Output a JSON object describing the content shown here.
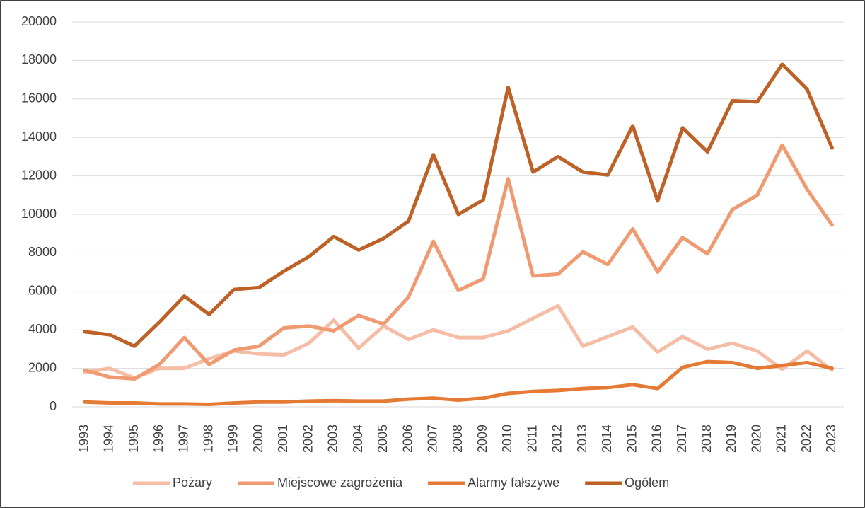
{
  "chart_data": {
    "type": "line",
    "categories": [
      "1993",
      "1994",
      "1995",
      "1996",
      "1997",
      "1998",
      "1999",
      "2000",
      "2001",
      "2002",
      "2003",
      "2004",
      "2005",
      "2006",
      "2007",
      "2008",
      "2009",
      "2010",
      "2011",
      "2012",
      "2013",
      "2014",
      "2015",
      "2016",
      "2017",
      "2018",
      "2019",
      "2020",
      "2021",
      "2022",
      "2023"
    ],
    "series": [
      {
        "name": "Pożary",
        "color": "#f6bda6",
        "values": [
          1800,
          2000,
          1500,
          2000,
          2000,
          2500,
          2900,
          2750,
          2700,
          3300,
          4500,
          3050,
          4200,
          3500,
          4000,
          3600,
          3600,
          3950,
          4600,
          5250,
          3150,
          3650,
          4150,
          2850,
          3650,
          3000,
          3300,
          2900,
          1950,
          2900,
          1900
        ]
      },
      {
        "name": "Miejscowe zagrożenia",
        "color": "#f09a71",
        "values": [
          1900,
          1550,
          1450,
          2200,
          3600,
          2200,
          2950,
          3150,
          4100,
          4200,
          3950,
          4750,
          4300,
          5700,
          8600,
          6050,
          6650,
          11850,
          6800,
          6900,
          8050,
          7400,
          9250,
          7000,
          8800,
          7950,
          10250,
          11000,
          13600,
          11300,
          9450
        ]
      },
      {
        "name": "Alarmy fałszywe",
        "color": "#e47a34",
        "values": [
          250,
          200,
          200,
          150,
          150,
          130,
          200,
          250,
          250,
          300,
          320,
          300,
          300,
          400,
          450,
          350,
          450,
          700,
          800,
          850,
          950,
          1000,
          1150,
          950,
          2050,
          2350,
          2300,
          2000,
          2150,
          2300,
          2000
        ]
      },
      {
        "name": "Ogółem",
        "color": "#be6126",
        "values": [
          3900,
          3750,
          3150,
          4400,
          5750,
          4800,
          6100,
          6200,
          7050,
          7800,
          8850,
          8150,
          8750,
          9650,
          13100,
          10000,
          10750,
          16600,
          12200,
          13000,
          12200,
          12050,
          14600,
          10700,
          14500,
          13250,
          15900,
          15850,
          17800,
          16500,
          13450
        ]
      }
    ],
    "ylim": [
      0,
      20000
    ],
    "yticks": [
      0,
      2000,
      4000,
      6000,
      8000,
      10000,
      12000,
      14000,
      16000,
      18000,
      20000
    ],
    "grid": true,
    "legend": "bottom"
  }
}
